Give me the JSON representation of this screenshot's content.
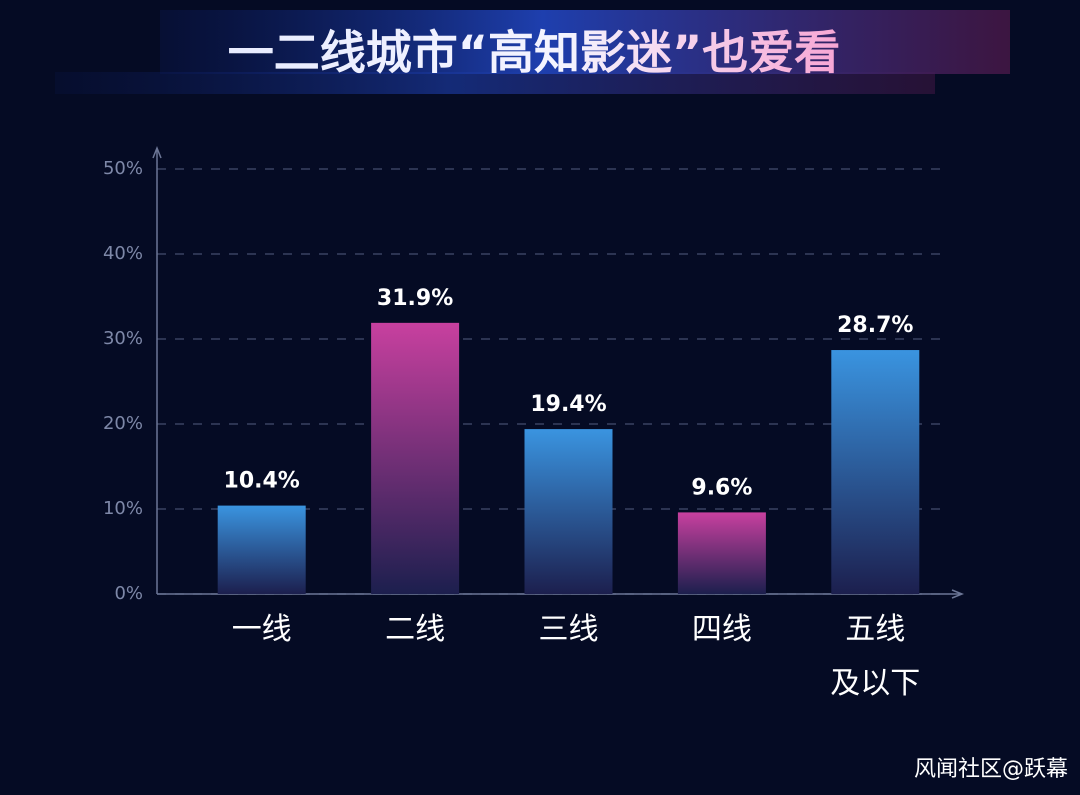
{
  "chart_data": {
    "type": "bar",
    "title": "一二线城市“高知影迷”也爱看",
    "categories": [
      "一线",
      "二线",
      "三线",
      "四线",
      "五线\n及以下"
    ],
    "values": [
      10.4,
      31.9,
      19.4,
      9.6,
      28.7
    ],
    "value_labels": [
      "10.4%",
      "31.9%",
      "19.4%",
      "9.6%",
      "28.7%"
    ],
    "colors": [
      "#3a94e0",
      "#c8409f",
      "#3a94e0",
      "#c8409f",
      "#3a94e0"
    ],
    "ylim": [
      0,
      50
    ],
    "yticks": [
      {
        "value": 0,
        "label": "0%"
      },
      {
        "value": 10,
        "label": "10%"
      },
      {
        "value": 20,
        "label": "20%"
      },
      {
        "value": 30,
        "label": "30%"
      },
      {
        "value": 40,
        "label": "40%"
      },
      {
        "value": 50,
        "label": "50%"
      }
    ],
    "grid": true
  },
  "watermark": "风闻社区@跃幕"
}
